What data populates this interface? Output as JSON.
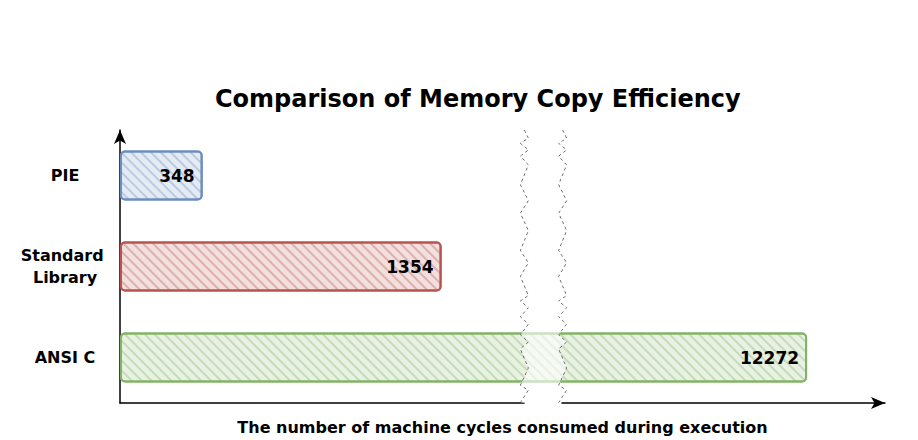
{
  "chart_data": {
    "type": "bar",
    "orientation": "horizontal",
    "title": "Comparison of Memory Copy Efficiency",
    "x_label": "The number of machine cycles consumed during execution",
    "categories": [
      "PIE",
      "Standard Library",
      "ANSI C"
    ],
    "values": [
      348,
      1354,
      12272
    ],
    "colors": [
      "#6c8ebf",
      "#b85450",
      "#82b366"
    ],
    "xlim": [
      0,
      12600
    ],
    "xbreaks": [
      [
        1700,
        11240
      ]
    ],
    "data_labels": true,
    "tick_labels": "y",
    "grid": false
  }
}
